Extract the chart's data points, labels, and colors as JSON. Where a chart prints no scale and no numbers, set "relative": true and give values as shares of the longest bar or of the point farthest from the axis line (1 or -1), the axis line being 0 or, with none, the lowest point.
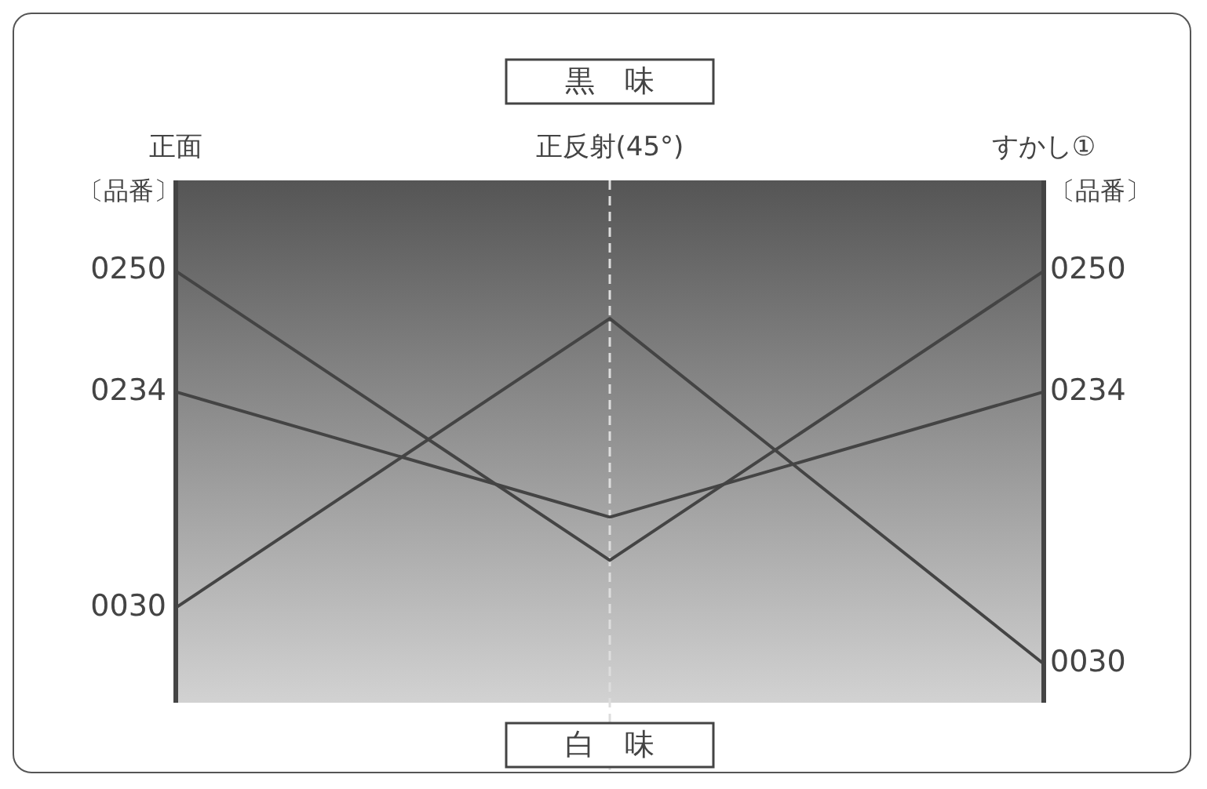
{
  "chart_data": {
    "type": "line",
    "relative": true,
    "title": "黒　味",
    "xlabel": "白　味",
    "categories": [
      "正面",
      "正反射(45°)",
      "すかし①"
    ],
    "series": [
      {
        "name": "0250",
        "color": "#444444",
        "values": [
          1,
          0.33,
          1
        ]
      },
      {
        "name": "0234",
        "color": "#444444",
        "values": [
          0.72,
          0.43,
          0.72
        ]
      },
      {
        "name": "0030",
        "color": "#444444",
        "values": [
          0.22,
          0.89,
          0.09
        ]
      }
    ],
    "annotations": [
      "〔品番〕",
      "〔品番〕"
    ],
    "ref_lines": [
      {
        "axis": "x",
        "value": "正反射(45°)",
        "line_style": "dashed",
        "color": "#dddddd"
      }
    ],
    "legend": false,
    "marker": "none",
    "line_style": "solid"
  }
}
